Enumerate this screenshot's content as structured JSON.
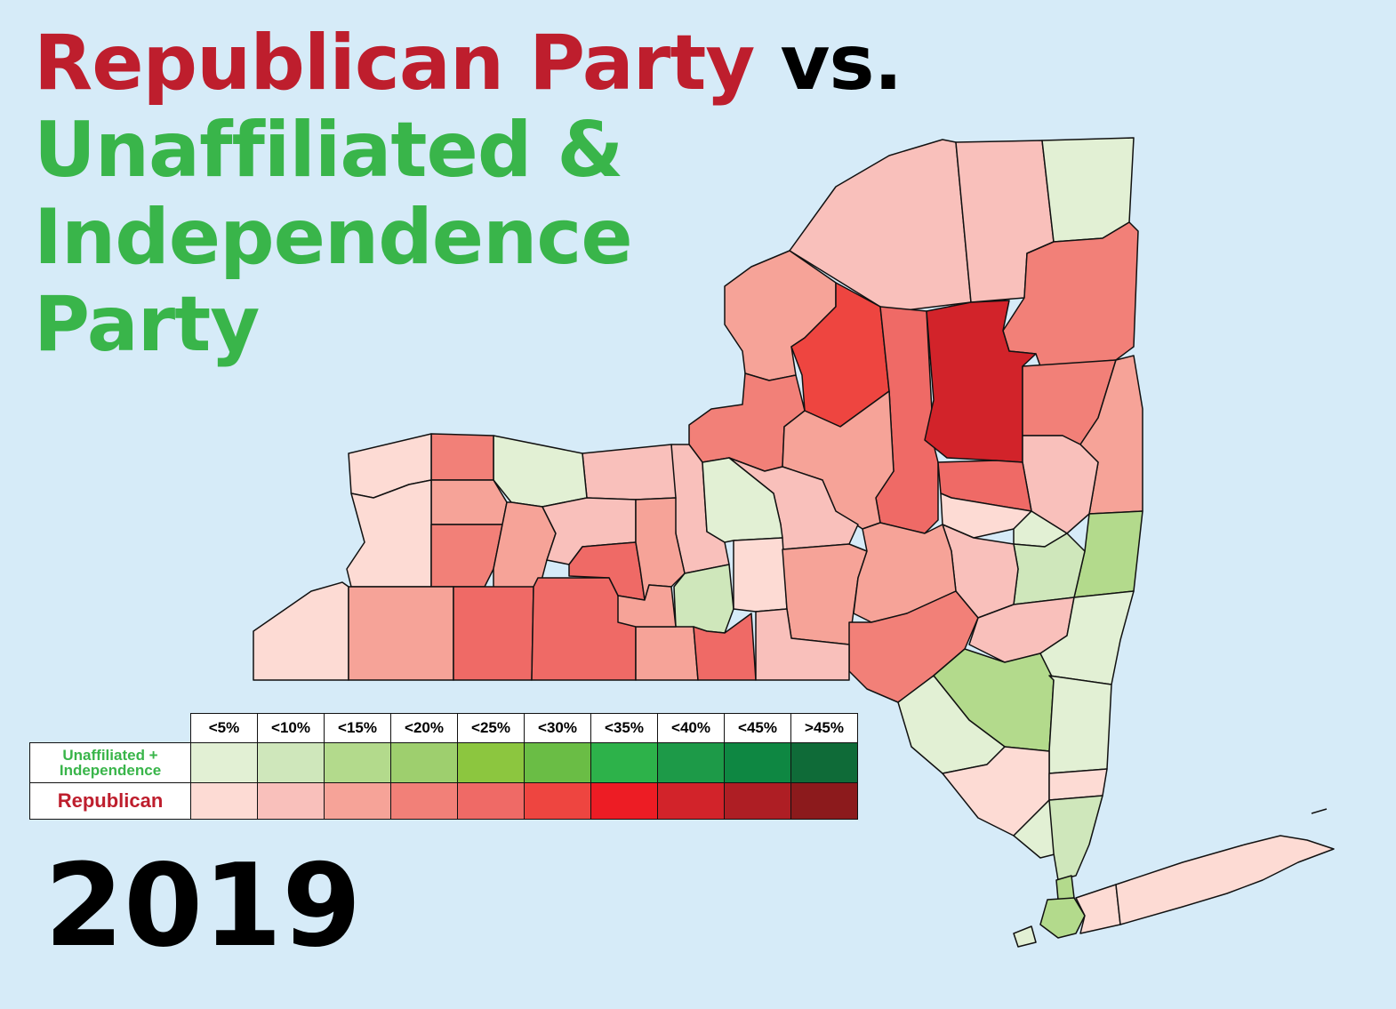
{
  "title": {
    "line1_red": "Republican Party",
    "line1_black": " vs.",
    "line2": "Unaffiliated &",
    "line3": "Independence",
    "line4": "Party"
  },
  "year": "2019",
  "colors": {
    "background": "#d6ebf8",
    "title_red": "#be1e2d",
    "title_green": "#39b54a",
    "border": "#111111"
  },
  "legend": {
    "bins": [
      "<5%",
      "<10%",
      "<15%",
      "<20%",
      "<25%",
      "<30%",
      "<35%",
      "<40%",
      "<45%",
      ">45%"
    ],
    "rows": [
      {
        "label": "Unaffiliated + Independence",
        "label_lines": [
          "Unaffiliated +",
          "Independence"
        ],
        "colors": [
          "#e2f0d4",
          "#cfe7bb",
          "#b3da8c",
          "#9ecf6e",
          "#8cc63f",
          "#6abd45",
          "#2db24a",
          "#1d9a48",
          "#0e8742",
          "#0f6b38"
        ]
      },
      {
        "label": "Republican",
        "colors": [
          "#fddbd4",
          "#f9c0bb",
          "#f6a398",
          "#f28078",
          "#ef6a66",
          "#ee4540",
          "#ed1c24",
          "#d2232a",
          "#ae1e24",
          "#8c1a1c"
        ]
      }
    ]
  },
  "chart_data": {
    "type": "choropleth",
    "title": "Republican Party vs. Unaffiliated & Independence Party",
    "subtitle": "2019"
  }
}
